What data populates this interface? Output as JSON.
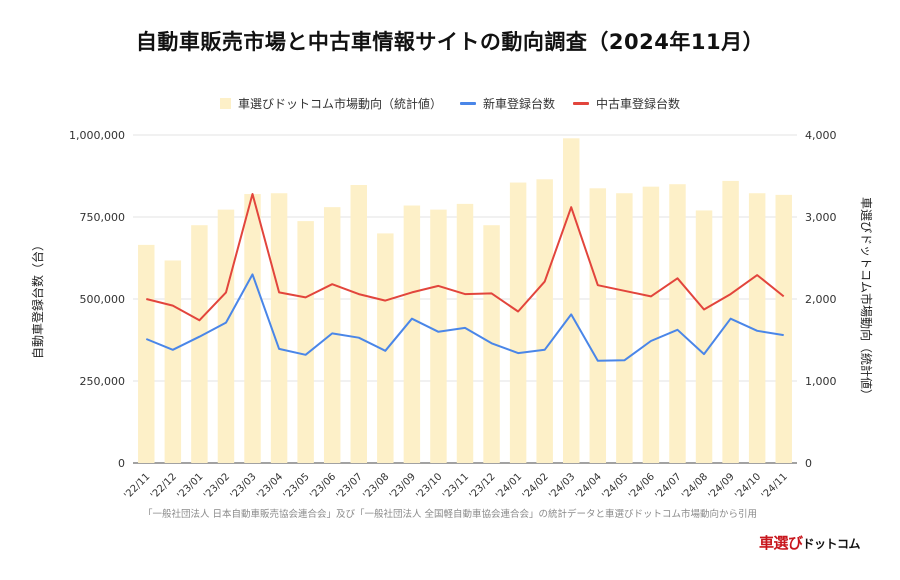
{
  "title": "自動車販売市場と中古車情報サイトの動向調査（2024年11月）",
  "legend": {
    "bar_label": "車選びドットコム市場動向（統計値）",
    "new_label": "新車登録台数",
    "used_label": "中古車登録台数"
  },
  "source_note": "「一般社団法人 日本自動車販売協会連合会」及び「一般社団法人 全国軽自動車協会連合会」の統計データと車選びドットコム市場動向から引用",
  "brand": {
    "part1": "車選び",
    "part2": "ドットコム"
  },
  "colors": {
    "bar": "#fdf0c8",
    "new": "#4a86e8",
    "used": "#e2453c",
    "grid": "#e3e3e3"
  },
  "chart_data": {
    "type": "bar+line",
    "title": "自動車販売市場と中古車情報サイトの動向調査（2024年11月）",
    "ylabel_left": "自動車登録台数（台）",
    "ylabel_right": "車選びドットコム市場動向（統計値）",
    "ylim_left": [
      0,
      1000000
    ],
    "ylim_right": [
      0,
      4000
    ],
    "yticks_left": [
      "0",
      "250,000",
      "500,000",
      "750,000",
      "1,000,000"
    ],
    "yticks_right": [
      "0",
      "1,000",
      "2,000",
      "3,000",
      "4,000"
    ],
    "categories": [
      "'22/11",
      "'22/12",
      "'23/01",
      "'23/02",
      "'23/03",
      "'23/04",
      "'23/05",
      "'23/06",
      "'23/07",
      "'23/08",
      "'23/09",
      "'23/10",
      "'23/11",
      "'23/12",
      "'24/01",
      "'24/02",
      "'24/03",
      "'24/04",
      "'24/05",
      "'24/06",
      "'24/07",
      "'24/08",
      "'24/09",
      "'24/10",
      "'24/11"
    ],
    "series": [
      {
        "name": "車選びドットコム市場動向（統計値）",
        "kind": "bar",
        "axis": "right",
        "values": [
          2660,
          2470,
          2900,
          3090,
          3280,
          3290,
          2950,
          3120,
          3390,
          2800,
          3140,
          3090,
          3160,
          2900,
          3420,
          3460,
          3960,
          3350,
          3290,
          3370,
          3400,
          3080,
          3440,
          3290,
          3270
        ]
      },
      {
        "name": "新車登録台数",
        "kind": "line",
        "axis": "left",
        "values": [
          378000,
          345000,
          385000,
          428000,
          575000,
          348000,
          330000,
          395000,
          382000,
          342000,
          440000,
          400000,
          412000,
          365000,
          335000,
          345000,
          453000,
          312000,
          313000,
          372000,
          406000,
          332000,
          440000,
          403000,
          390000
        ]
      },
      {
        "name": "中古車登録台数",
        "kind": "line",
        "axis": "left",
        "values": [
          500000,
          480000,
          435000,
          520000,
          820000,
          520000,
          505000,
          545000,
          515000,
          495000,
          520000,
          540000,
          515000,
          517000,
          462000,
          553000,
          780000,
          542000,
          525000,
          508000,
          563000,
          468000,
          515000,
          573000,
          508000
        ]
      }
    ]
  }
}
